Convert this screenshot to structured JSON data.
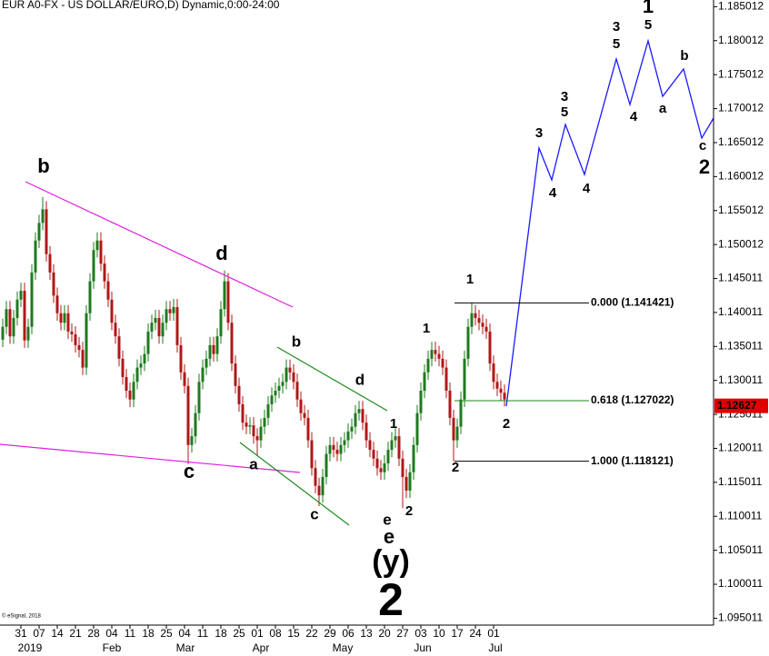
{
  "chart_data": {
    "type": "candlestick",
    "title": "EUR A0-FX - US DOLLAR/EURO,D) Dynamic,0:00-24:00",
    "categories": [
      null,
      null,
      null,
      null,
      null,
      "31",
      null,
      null,
      null,
      null,
      "07",
      null,
      null,
      null,
      null,
      "14",
      null,
      null,
      null,
      null,
      "21",
      null,
      null,
      null,
      null,
      "28",
      null,
      null,
      null,
      null,
      "04",
      null,
      null,
      null,
      null,
      "11",
      null,
      null,
      null,
      null,
      "18",
      null,
      null,
      null,
      null,
      "25",
      null,
      null,
      null,
      null,
      "04",
      null,
      null,
      null,
      null,
      "11",
      null,
      null,
      null,
      null,
      "18",
      null,
      null,
      null,
      null,
      "25",
      null,
      null,
      null,
      null,
      "01",
      null,
      null,
      null,
      null,
      "08",
      null,
      null,
      null,
      null,
      "15",
      null,
      null,
      null,
      null,
      "22",
      null,
      null,
      null,
      null,
      "29",
      null,
      null,
      null,
      null,
      "06",
      null,
      null,
      null,
      null,
      "13",
      null,
      null,
      null,
      null,
      "20",
      null,
      null,
      null,
      null,
      "27",
      null,
      null,
      null,
      null,
      "03",
      null,
      null,
      null,
      null,
      "10",
      null,
      null,
      null,
      null,
      "17",
      null,
      null,
      null,
      null,
      "24",
      null,
      null,
      null,
      null,
      "01",
      null,
      null,
      null
    ],
    "x_group_labels": [
      "2019",
      "Feb",
      "Mar",
      "Apr",
      "May",
      "Jun",
      "Jul"
    ],
    "open": [
      1.136,
      1.1379,
      1.1405,
      1.1365,
      1.1392,
      1.1419,
      1.1432,
      1.1359,
      1.1379,
      1.1459,
      1.1506,
      1.1532,
      1.1552,
      1.1486,
      1.1459,
      1.1425,
      1.1399,
      1.1385,
      1.1399,
      1.1372,
      1.1368,
      1.1352,
      1.1345,
      1.1319,
      1.1399,
      1.1446,
      1.1492,
      1.1506,
      1.1472,
      1.1446,
      1.1419,
      1.1385,
      1.1365,
      1.1332,
      1.1305,
      1.1285,
      1.1272,
      1.1298,
      1.1319,
      1.1325,
      1.1339,
      1.1372,
      1.1385,
      1.1392,
      1.1365,
      1.1385,
      1.1405,
      1.1399,
      1.1408,
      1.1352,
      1.1312,
      1.1292,
      1.1205,
      1.1218,
      1.1252,
      1.1298,
      1.1319,
      1.1332,
      1.1352,
      1.1339,
      1.1365,
      1.1405,
      1.1446,
      1.1385,
      1.1325,
      1.1292,
      1.1265,
      1.1238,
      1.1232,
      1.1234,
      1.1218,
      1.1212,
      1.1232,
      1.1245,
      1.1265,
      1.1278,
      1.1285,
      1.1292,
      1.1298,
      1.1319,
      1.1312,
      1.1298,
      1.1272,
      1.1252,
      1.1245,
      1.1212,
      1.1171,
      1.1145,
      1.1131,
      1.1158,
      1.1192,
      1.1205,
      1.1198,
      1.1192,
      1.1205,
      1.1212,
      1.1225,
      1.1232,
      1.1252,
      1.1258,
      1.1238,
      1.1212,
      1.1198,
      1.1185,
      1.1171,
      1.1165,
      1.1178,
      1.1198,
      1.1212,
      1.1218,
      1.1185,
      1.1158,
      1.1138,
      1.1165,
      1.1205,
      1.1252,
      1.1285,
      1.1312,
      1.1332,
      1.1345,
      1.1339,
      1.1332,
      1.1319,
      1.1285,
      1.1245,
      1.1212,
      1.1232,
      1.1272,
      1.1332,
      1.1379,
      1.1399,
      1.1392,
      1.1385,
      1.1379,
      1.1372,
      1.1325,
      1.1298,
      1.1288,
      1.1282
    ],
    "high": [
      1.1391,
      1.1417,
      1.1417,
      1.1404,
      1.1431,
      1.1444,
      1.1444,
      1.1391,
      1.1471,
      1.1518,
      1.1544,
      1.157,
      1.1564,
      1.1498,
      1.1471,
      1.1437,
      1.1411,
      1.1411,
      1.1411,
      1.1384,
      1.138,
      1.1364,
      1.1357,
      1.1411,
      1.1458,
      1.1504,
      1.1518,
      1.1518,
      1.1484,
      1.1458,
      1.1431,
      1.1397,
      1.1377,
      1.1344,
      1.1317,
      1.1297,
      1.131,
      1.1331,
      1.1337,
      1.1351,
      1.1384,
      1.1397,
      1.1404,
      1.1404,
      1.1397,
      1.1417,
      1.1417,
      1.142,
      1.142,
      1.1364,
      1.1324,
      1.1304,
      1.123,
      1.1264,
      1.131,
      1.1331,
      1.1344,
      1.1364,
      1.1364,
      1.1377,
      1.1417,
      1.1462,
      1.1458,
      1.1397,
      1.1337,
      1.1304,
      1.1277,
      1.125,
      1.1246,
      1.1246,
      1.123,
      1.1244,
      1.1257,
      1.1277,
      1.129,
      1.1297,
      1.1304,
      1.131,
      1.1331,
      1.1331,
      1.1324,
      1.131,
      1.1284,
      1.1264,
      1.1257,
      1.1224,
      1.1183,
      1.1157,
      1.117,
      1.1204,
      1.1217,
      1.1217,
      1.121,
      1.1217,
      1.1224,
      1.1237,
      1.1244,
      1.1264,
      1.127,
      1.127,
      1.125,
      1.1224,
      1.121,
      1.1197,
      1.1183,
      1.119,
      1.121,
      1.1224,
      1.123,
      1.123,
      1.1197,
      1.117,
      1.1177,
      1.1217,
      1.1264,
      1.1297,
      1.1324,
      1.1344,
      1.1357,
      1.1357,
      1.1351,
      1.1344,
      1.1331,
      1.1297,
      1.1257,
      1.1244,
      1.1284,
      1.1344,
      1.1391,
      1.1414,
      1.1411,
      1.1404,
      1.1397,
      1.1391,
      1.1384,
      1.1337,
      1.131,
      1.13,
      1.1294
    ],
    "low": [
      1.1349,
      1.1368,
      1.1354,
      1.1354,
      1.1381,
      1.1408,
      1.1348,
      1.1348,
      1.1368,
      1.1448,
      1.1495,
      1.1521,
      1.1475,
      1.1448,
      1.1414,
      1.1388,
      1.1374,
      1.1374,
      1.1361,
      1.1357,
      1.1341,
      1.1334,
      1.1308,
      1.1308,
      1.1388,
      1.1435,
      1.1481,
      1.1461,
      1.1435,
      1.1408,
      1.1374,
      1.1354,
      1.1321,
      1.1294,
      1.1274,
      1.1261,
      1.1261,
      1.1287,
      1.1308,
      1.1314,
      1.1328,
      1.1361,
      1.1374,
      1.1354,
      1.1354,
      1.1374,
      1.1388,
      1.1388,
      1.1341,
      1.1301,
      1.1281,
      1.1177,
      1.1194,
      1.1207,
      1.1241,
      1.1287,
      1.1308,
      1.1321,
      1.1328,
      1.1328,
      1.1354,
      1.1394,
      1.1374,
      1.1314,
      1.1281,
      1.1254,
      1.1227,
      1.1221,
      1.1221,
      1.1207,
      1.119,
      1.1201,
      1.1221,
      1.1234,
      1.1254,
      1.1267,
      1.1274,
      1.1281,
      1.1287,
      1.1301,
      1.1287,
      1.1261,
      1.1241,
      1.1234,
      1.1201,
      1.116,
      1.1134,
      1.1115,
      1.112,
      1.1147,
      1.1181,
      1.1187,
      1.1181,
      1.1181,
      1.1194,
      1.1201,
      1.1214,
      1.1221,
      1.1241,
      1.1227,
      1.1201,
      1.1187,
      1.1174,
      1.116,
      1.1154,
      1.1154,
      1.1167,
      1.1187,
      1.1201,
      1.1174,
      1.1112,
      1.1127,
      1.1127,
      1.1154,
      1.1194,
      1.1241,
      1.1274,
      1.1301,
      1.1321,
      1.1328,
      1.1321,
      1.1308,
      1.1274,
      1.1234,
      1.1181,
      1.1201,
      1.1221,
      1.1261,
      1.1321,
      1.1368,
      1.1381,
      1.1374,
      1.1368,
      1.1361,
      1.1314,
      1.1287,
      1.1277,
      1.1271,
      1.1262
    ],
    "close": [
      1.1379,
      1.1405,
      1.1365,
      1.1392,
      1.1419,
      1.1432,
      1.1359,
      1.1379,
      1.1459,
      1.1506,
      1.1532,
      1.1552,
      1.1486,
      1.1459,
      1.1425,
      1.1399,
      1.1385,
      1.1399,
      1.1372,
      1.1368,
      1.1352,
      1.1345,
      1.1319,
      1.1399,
      1.1446,
      1.1492,
      1.1506,
      1.1472,
      1.1446,
      1.1419,
      1.1385,
      1.1365,
      1.1332,
      1.1305,
      1.1285,
      1.1272,
      1.1298,
      1.1319,
      1.1325,
      1.1339,
      1.1372,
      1.1385,
      1.1392,
      1.1365,
      1.1385,
      1.1405,
      1.1399,
      1.1408,
      1.1352,
      1.1312,
      1.1292,
      1.1205,
      1.1218,
      1.1252,
      1.1298,
      1.1319,
      1.1332,
      1.1352,
      1.1339,
      1.1365,
      1.1405,
      1.1446,
      1.1385,
      1.1325,
      1.1292,
      1.1265,
      1.1238,
      1.1232,
      1.1234,
      1.1218,
      1.1212,
      1.1232,
      1.1245,
      1.1265,
      1.1278,
      1.1285,
      1.1292,
      1.1298,
      1.1319,
      1.1312,
      1.1298,
      1.1272,
      1.1252,
      1.1245,
      1.1212,
      1.1171,
      1.1145,
      1.1131,
      1.1158,
      1.1192,
      1.1205,
      1.1198,
      1.1192,
      1.1205,
      1.1212,
      1.1225,
      1.1232,
      1.1252,
      1.1258,
      1.1238,
      1.1212,
      1.1198,
      1.1185,
      1.1171,
      1.1165,
      1.1178,
      1.1198,
      1.1212,
      1.1218,
      1.1185,
      1.1158,
      1.1138,
      1.1165,
      1.1205,
      1.1252,
      1.1285,
      1.1312,
      1.1332,
      1.1345,
      1.1339,
      1.1332,
      1.1319,
      1.1285,
      1.1245,
      1.1212,
      1.1232,
      1.1272,
      1.1332,
      1.1379,
      1.1399,
      1.1392,
      1.1385,
      1.1379,
      1.1372,
      1.1325,
      1.1298,
      1.1288,
      1.1282,
      1.1272
    ],
    "up_color": "#1f7a1f",
    "down_color": "#b01818",
    "ylim": [
      1.094,
      1.186
    ],
    "yticks": [
      1.185012,
      1.180012,
      1.175012,
      1.170012,
      1.165012,
      1.160012,
      1.155012,
      1.150012,
      1.145011,
      1.140011,
      1.135011,
      1.130011,
      1.125011,
      1.120011,
      1.115011,
      1.110011,
      1.105011,
      1.100011,
      1.095011
    ],
    "grid": false,
    "last_price": 1.12627,
    "last_price_color": "#e00000",
    "fib_levels": [
      {
        "label": "0.000 (1.141421)",
        "price": 1.141421,
        "color": "#000000"
      },
      {
        "label": "0.618 (1.127022)",
        "price": 1.127022,
        "color": "#1a8a1a"
      },
      {
        "label": "1.000 (1.118121)",
        "price": 1.118121,
        "color": "#000000"
      }
    ]
  },
  "annotations": [
    "b",
    "d",
    "c",
    "e",
    "b",
    "d",
    "a",
    "c",
    "e",
    "1",
    "2",
    "(y)",
    "2",
    "1",
    "2",
    "1",
    "2",
    "3",
    "4",
    "5",
    "3",
    "4",
    "3",
    "5",
    "5",
    "1",
    "4",
    "a",
    "b",
    "c",
    "2",
    "© eSignal, 2018"
  ]
}
